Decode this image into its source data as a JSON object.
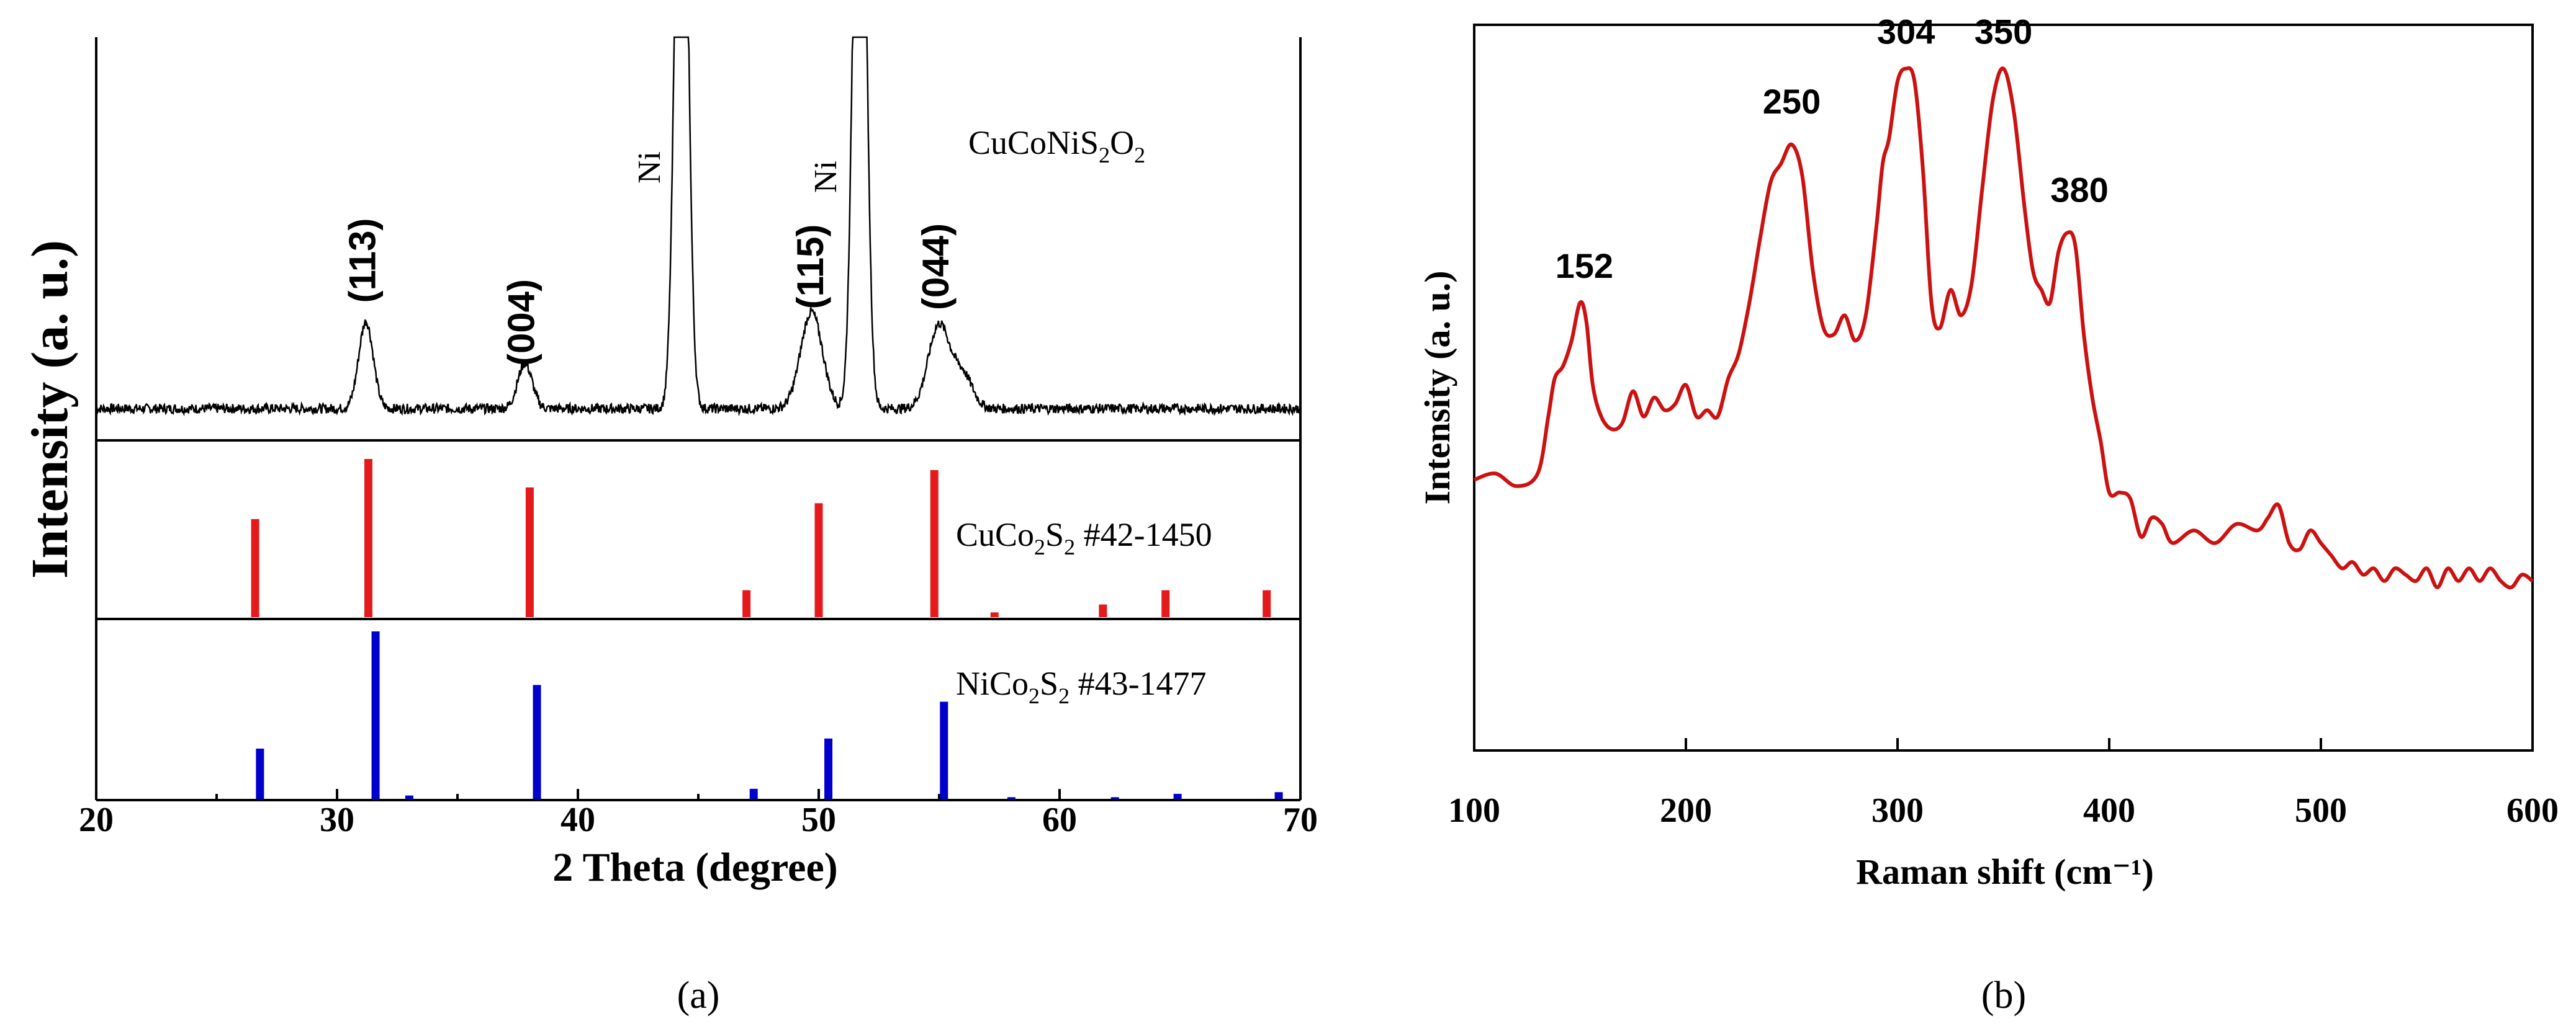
{
  "figure": {
    "panel_a_label": "(a)",
    "panel_b_label": "(b)"
  },
  "chart_data": [
    {
      "id": "xrd",
      "type": "line",
      "title": "",
      "xlabel": "2 Theta (degree)",
      "ylabel": "Intensity (a. u.)",
      "xlim": [
        20,
        70
      ],
      "xticks": [
        20,
        30,
        40,
        50,
        60,
        70
      ],
      "series": [
        {
          "name": "CuCoNiS2O2",
          "label_main": "CuCoNiS",
          "label_sub1": "2",
          "label_mid": "O",
          "label_sub2": "2",
          "color": "#000000",
          "baseline": 0.06,
          "noise": 0.015,
          "peaks": [
            {
              "x": 31.2,
              "h": 0.27,
              "w": 0.3
            },
            {
              "x": 37.8,
              "h": 0.14,
              "w": 0.3
            },
            {
              "x": 44.3,
              "h": 2.4,
              "w": 0.25
            },
            {
              "x": 49.7,
              "h": 0.3,
              "w": 0.45
            },
            {
              "x": 51.7,
              "h": 2.4,
              "w": 0.25
            },
            {
              "x": 55.0,
              "h": 0.26,
              "w": 0.45
            },
            {
              "x": 56.0,
              "h": 0.1,
              "w": 0.4
            }
          ],
          "annotations": [
            {
              "text": "(113)",
              "x": 31.2
            },
            {
              "text": "(004)",
              "x": 37.8
            },
            {
              "text": "Ni",
              "x": 44.3
            },
            {
              "text": "(115)",
              "x": 49.8
            },
            {
              "text": "Ni",
              "x": 51.5
            },
            {
              "text": "(044)",
              "x": 55.0
            }
          ]
        }
      ],
      "references": [
        {
          "name": "CuCo2S2 #42-1450",
          "label_main": "CuCo",
          "label_sub1": "2",
          "label_mid": "S",
          "label_sub2": "2",
          "label_tail": " #42-1450",
          "color": "#e41a1c",
          "sticks": [
            {
              "x": 26.6,
              "h": 0.62
            },
            {
              "x": 31.3,
              "h": 1.0
            },
            {
              "x": 38.0,
              "h": 0.82
            },
            {
              "x": 47.0,
              "h": 0.17
            },
            {
              "x": 50.0,
              "h": 0.72
            },
            {
              "x": 54.8,
              "h": 0.93
            },
            {
              "x": 57.3,
              "h": 0.03
            },
            {
              "x": 61.8,
              "h": 0.08
            },
            {
              "x": 64.4,
              "h": 0.17
            },
            {
              "x": 68.6,
              "h": 0.17
            }
          ]
        },
        {
          "name": "NiCo2S2 #43-1477",
          "label_main": "NiCo",
          "label_sub1": "2",
          "label_mid": "S",
          "label_sub2": "2",
          "label_tail": " #43-1477",
          "color": "#0000cc",
          "sticks": [
            {
              "x": 26.8,
              "h": 0.3
            },
            {
              "x": 31.6,
              "h": 1.0
            },
            {
              "x": 33.0,
              "h": 0.02
            },
            {
              "x": 38.3,
              "h": 0.68
            },
            {
              "x": 47.3,
              "h": 0.06
            },
            {
              "x": 50.4,
              "h": 0.36
            },
            {
              "x": 55.2,
              "h": 0.58
            },
            {
              "x": 58.0,
              "h": 0.01
            },
            {
              "x": 62.3,
              "h": 0.01
            },
            {
              "x": 64.9,
              "h": 0.03
            },
            {
              "x": 69.1,
              "h": 0.04
            }
          ]
        }
      ]
    },
    {
      "id": "raman",
      "type": "line",
      "title": "",
      "xlabel": "Raman shift (cm⁻¹)",
      "ylabel": "Intensity (a. u.)",
      "xlim": [
        100,
        600
      ],
      "ylim": [
        0,
        1
      ],
      "xticks": [
        100,
        200,
        300,
        400,
        500,
        600
      ],
      "series": [
        {
          "name": "Raman",
          "color": "#cc1111",
          "x": [
            100,
            110,
            120,
            130,
            135,
            138,
            142,
            146,
            150,
            153,
            156,
            160,
            165,
            170,
            175,
            180,
            185,
            190,
            195,
            200,
            205,
            210,
            215,
            220,
            225,
            230,
            235,
            240,
            245,
            250,
            255,
            260,
            265,
            270,
            275,
            280,
            285,
            290,
            293,
            296,
            300,
            304,
            308,
            312,
            316,
            320,
            325,
            330,
            335,
            340,
            345,
            350,
            355,
            360,
            364,
            368,
            372,
            376,
            380,
            384,
            388,
            392,
            396,
            400,
            405,
            410,
            415,
            420,
            425,
            430,
            440,
            450,
            460,
            470,
            475,
            480,
            485,
            490,
            495,
            500,
            505,
            510,
            515,
            520,
            525,
            530,
            535,
            540,
            545,
            550,
            555,
            560,
            565,
            570,
            575,
            580,
            585,
            590,
            595,
            600
          ],
          "y": [
            0.32,
            0.33,
            0.31,
            0.33,
            0.42,
            0.48,
            0.5,
            0.54,
            0.6,
            0.57,
            0.47,
            0.42,
            0.4,
            0.41,
            0.46,
            0.42,
            0.45,
            0.43,
            0.44,
            0.47,
            0.42,
            0.43,
            0.42,
            0.48,
            0.52,
            0.6,
            0.7,
            0.79,
            0.82,
            0.85,
            0.8,
            0.65,
            0.56,
            0.55,
            0.58,
            0.54,
            0.58,
            0.72,
            0.82,
            0.86,
            0.95,
            0.97,
            0.95,
            0.81,
            0.6,
            0.56,
            0.62,
            0.58,
            0.63,
            0.78,
            0.92,
            0.97,
            0.9,
            0.75,
            0.65,
            0.62,
            0.6,
            0.68,
            0.71,
            0.69,
            0.55,
            0.45,
            0.38,
            0.3,
            0.3,
            0.29,
            0.23,
            0.26,
            0.25,
            0.22,
            0.24,
            0.22,
            0.25,
            0.24,
            0.26,
            0.28,
            0.22,
            0.21,
            0.24,
            0.22,
            0.2,
            0.18,
            0.19,
            0.17,
            0.18,
            0.16,
            0.18,
            0.17,
            0.16,
            0.18,
            0.15,
            0.18,
            0.16,
            0.18,
            0.16,
            0.18,
            0.16,
            0.15,
            0.17,
            0.16
          ],
          "annotations": [
            {
              "text": "152",
              "x": 152,
              "y": 0.6
            },
            {
              "text": "250",
              "x": 250,
              "y": 0.86
            },
            {
              "text": "304",
              "x": 304,
              "y": 0.97
            },
            {
              "text": "350",
              "x": 350,
              "y": 0.97
            },
            {
              "text": "380",
              "x": 383,
              "y": 0.72
            }
          ]
        }
      ]
    }
  ]
}
